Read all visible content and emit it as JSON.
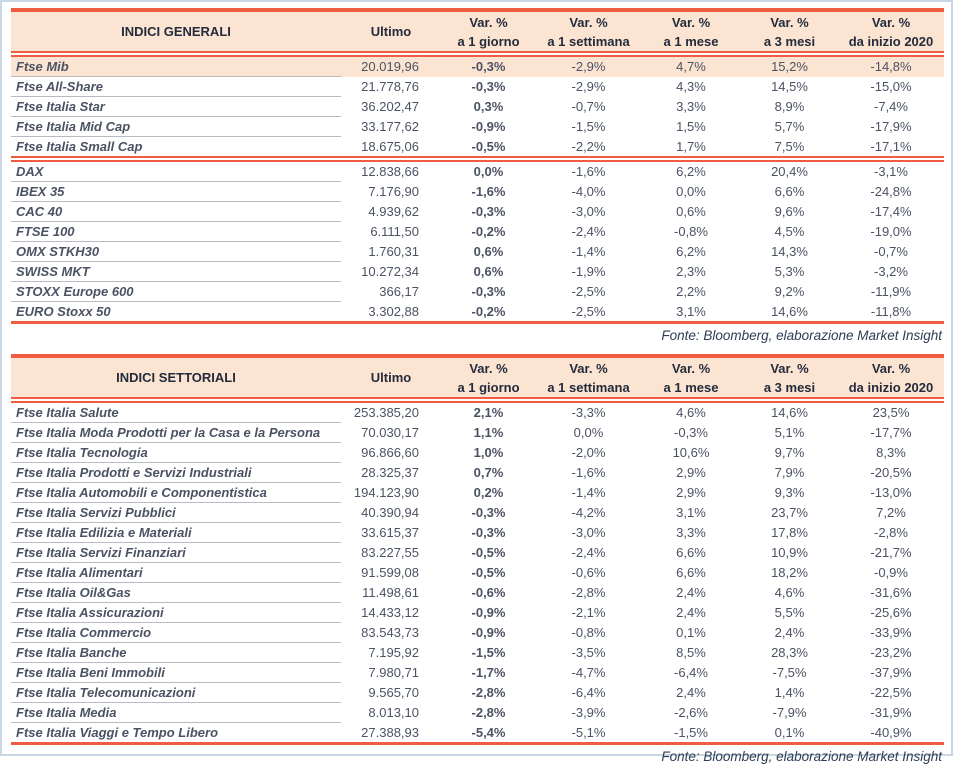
{
  "colors": {
    "accent_red": "#f05c42",
    "peach_band": "#fbe5d2",
    "frame_blue": "#c9d6e4"
  },
  "fonte": "Fonte: Bloomberg, elaborazione Market Insight",
  "tables": [
    {
      "title": "INDICI GENERALI",
      "ultimo_header": "Ultimo",
      "var_headers": [
        {
          "line1": "Var. %",
          "line2": "a 1 giorno"
        },
        {
          "line1": "Var. %",
          "line2": "a 1 settimana"
        },
        {
          "line1": "Var. %",
          "line2": "a 1 mese"
        },
        {
          "line1": "Var. %",
          "line2": "a 3 mesi"
        },
        {
          "line1": "Var. %",
          "line2": "da inizio 2020"
        }
      ],
      "groups": [
        {
          "rows": [
            {
              "name": "Ftse Mib",
              "ultimo": "20.019,96",
              "vars": [
                "-0,3%",
                "-2,9%",
                "4,7%",
                "15,2%",
                "-14,8%"
              ],
              "highlight": true
            },
            {
              "name": "Ftse All-Share",
              "ultimo": "21.778,76",
              "vars": [
                "-0,3%",
                "-2,9%",
                "4,3%",
                "14,5%",
                "-15,0%"
              ]
            },
            {
              "name": "Ftse Italia Star",
              "ultimo": "36.202,47",
              "vars": [
                "0,3%",
                "-0,7%",
                "3,3%",
                "8,9%",
                "-7,4%"
              ]
            },
            {
              "name": "Ftse Italia Mid Cap",
              "ultimo": "33.177,62",
              "vars": [
                "-0,9%",
                "-1,5%",
                "1,5%",
                "5,7%",
                "-17,9%"
              ]
            },
            {
              "name": "Ftse Italia Small Cap",
              "ultimo": "18.675,06",
              "vars": [
                "-0,5%",
                "-2,2%",
                "1,7%",
                "7,5%",
                "-17,1%"
              ]
            }
          ]
        },
        {
          "rows": [
            {
              "name": "DAX",
              "ultimo": "12.838,66",
              "vars": [
                "0,0%",
                "-1,6%",
                "6,2%",
                "20,4%",
                "-3,1%"
              ]
            },
            {
              "name": "IBEX 35",
              "ultimo": "7.176,90",
              "vars": [
                "-1,6%",
                "-4,0%",
                "0,0%",
                "6,6%",
                "-24,8%"
              ]
            },
            {
              "name": "CAC 40",
              "ultimo": "4.939,62",
              "vars": [
                "-0,3%",
                "-3,0%",
                "0,6%",
                "9,6%",
                "-17,4%"
              ]
            },
            {
              "name": "FTSE 100",
              "ultimo": "6.111,50",
              "vars": [
                "-0,2%",
                "-2,4%",
                "-0,8%",
                "4,5%",
                "-19,0%"
              ]
            },
            {
              "name": "OMX STKH30",
              "ultimo": "1.760,31",
              "vars": [
                "0,6%",
                "-1,4%",
                "6,2%",
                "14,3%",
                "-0,7%"
              ]
            },
            {
              "name": "SWISS MKT",
              "ultimo": "10.272,34",
              "vars": [
                "0,6%",
                "-1,9%",
                "2,3%",
                "5,3%",
                "-3,2%"
              ]
            },
            {
              "name": "STOXX Europe 600",
              "ultimo": "366,17",
              "vars": [
                "-0,3%",
                "-2,5%",
                "2,2%",
                "9,2%",
                "-11,9%"
              ]
            },
            {
              "name": "EURO Stoxx 50",
              "ultimo": "3.302,88",
              "vars": [
                "-0,2%",
                "-2,5%",
                "3,1%",
                "14,6%",
                "-11,8%"
              ]
            }
          ]
        }
      ]
    },
    {
      "title": "INDICI SETTORIALI",
      "ultimo_header": "Ultimo",
      "var_headers": [
        {
          "line1": "Var. %",
          "line2": "a 1 giorno"
        },
        {
          "line1": "Var. %",
          "line2": "a 1 settimana"
        },
        {
          "line1": "Var. %",
          "line2": "a 1 mese"
        },
        {
          "line1": "Var. %",
          "line2": "a 3 mesi"
        },
        {
          "line1": "Var. %",
          "line2": "da inizio 2020"
        }
      ],
      "groups": [
        {
          "rows": [
            {
              "name": "Ftse Italia Salute",
              "ultimo": "253.385,20",
              "vars": [
                "2,1%",
                "-3,3%",
                "4,6%",
                "14,6%",
                "23,5%"
              ]
            },
            {
              "name": "Ftse Italia Moda Prodotti per la Casa e la Persona",
              "ultimo": "70.030,17",
              "vars": [
                "1,1%",
                "0,0%",
                "-0,3%",
                "5,1%",
                "-17,7%"
              ]
            },
            {
              "name": "Ftse Italia Tecnologia",
              "ultimo": "96.866,60",
              "vars": [
                "1,0%",
                "-2,0%",
                "10,6%",
                "9,7%",
                "8,3%"
              ]
            },
            {
              "name": "Ftse Italia Prodotti e Servizi Industriali",
              "ultimo": "28.325,37",
              "vars": [
                "0,7%",
                "-1,6%",
                "2,9%",
                "7,9%",
                "-20,5%"
              ]
            },
            {
              "name": "Ftse Italia Automobili e Componentistica",
              "ultimo": "194.123,90",
              "vars": [
                "0,2%",
                "-1,4%",
                "2,9%",
                "9,3%",
                "-13,0%"
              ]
            },
            {
              "name": "Ftse Italia Servizi Pubblici",
              "ultimo": "40.390,94",
              "vars": [
                "-0,3%",
                "-4,2%",
                "3,1%",
                "23,7%",
                "7,2%"
              ]
            },
            {
              "name": "Ftse Italia Edilizia e Materiali",
              "ultimo": "33.615,37",
              "vars": [
                "-0,3%",
                "-3,0%",
                "3,3%",
                "17,8%",
                "-2,8%"
              ]
            },
            {
              "name": "Ftse Italia Servizi Finanziari",
              "ultimo": "83.227,55",
              "vars": [
                "-0,5%",
                "-2,4%",
                "6,6%",
                "10,9%",
                "-21,7%"
              ]
            },
            {
              "name": "Ftse Italia Alimentari",
              "ultimo": "91.599,08",
              "vars": [
                "-0,5%",
                "-0,6%",
                "6,6%",
                "18,2%",
                "-0,9%"
              ]
            },
            {
              "name": "Ftse Italia Oil&Gas",
              "ultimo": "11.498,61",
              "vars": [
                "-0,6%",
                "-2,8%",
                "2,4%",
                "4,6%",
                "-31,6%"
              ]
            },
            {
              "name": "Ftse Italia Assicurazioni",
              "ultimo": "14.433,12",
              "vars": [
                "-0,9%",
                "-2,1%",
                "2,4%",
                "5,5%",
                "-25,6%"
              ]
            },
            {
              "name": "Ftse Italia Commercio",
              "ultimo": "83.543,73",
              "vars": [
                "-0,9%",
                "-0,8%",
                "0,1%",
                "2,4%",
                "-33,9%"
              ]
            },
            {
              "name": "Ftse Italia Banche",
              "ultimo": "7.195,92",
              "vars": [
                "-1,5%",
                "-3,5%",
                "8,5%",
                "28,3%",
                "-23,2%"
              ]
            },
            {
              "name": "Ftse Italia Beni Immobili",
              "ultimo": "7.980,71",
              "vars": [
                "-1,7%",
                "-4,7%",
                "-6,4%",
                "-7,5%",
                "-37,9%"
              ]
            },
            {
              "name": "Ftse Italia Telecomunicazioni",
              "ultimo": "9.565,70",
              "vars": [
                "-2,8%",
                "-6,4%",
                "2,4%",
                "1,4%",
                "-22,5%"
              ]
            },
            {
              "name": "Ftse Italia Media",
              "ultimo": "8.013,10",
              "vars": [
                "-2,8%",
                "-3,9%",
                "-2,6%",
                "-7,9%",
                "-31,9%"
              ]
            },
            {
              "name": "Ftse Italia Viaggi e Tempo Libero",
              "ultimo": "27.388,93",
              "vars": [
                "-5,4%",
                "-5,1%",
                "-1,5%",
                "0,1%",
                "-40,9%"
              ]
            }
          ]
        }
      ]
    }
  ]
}
